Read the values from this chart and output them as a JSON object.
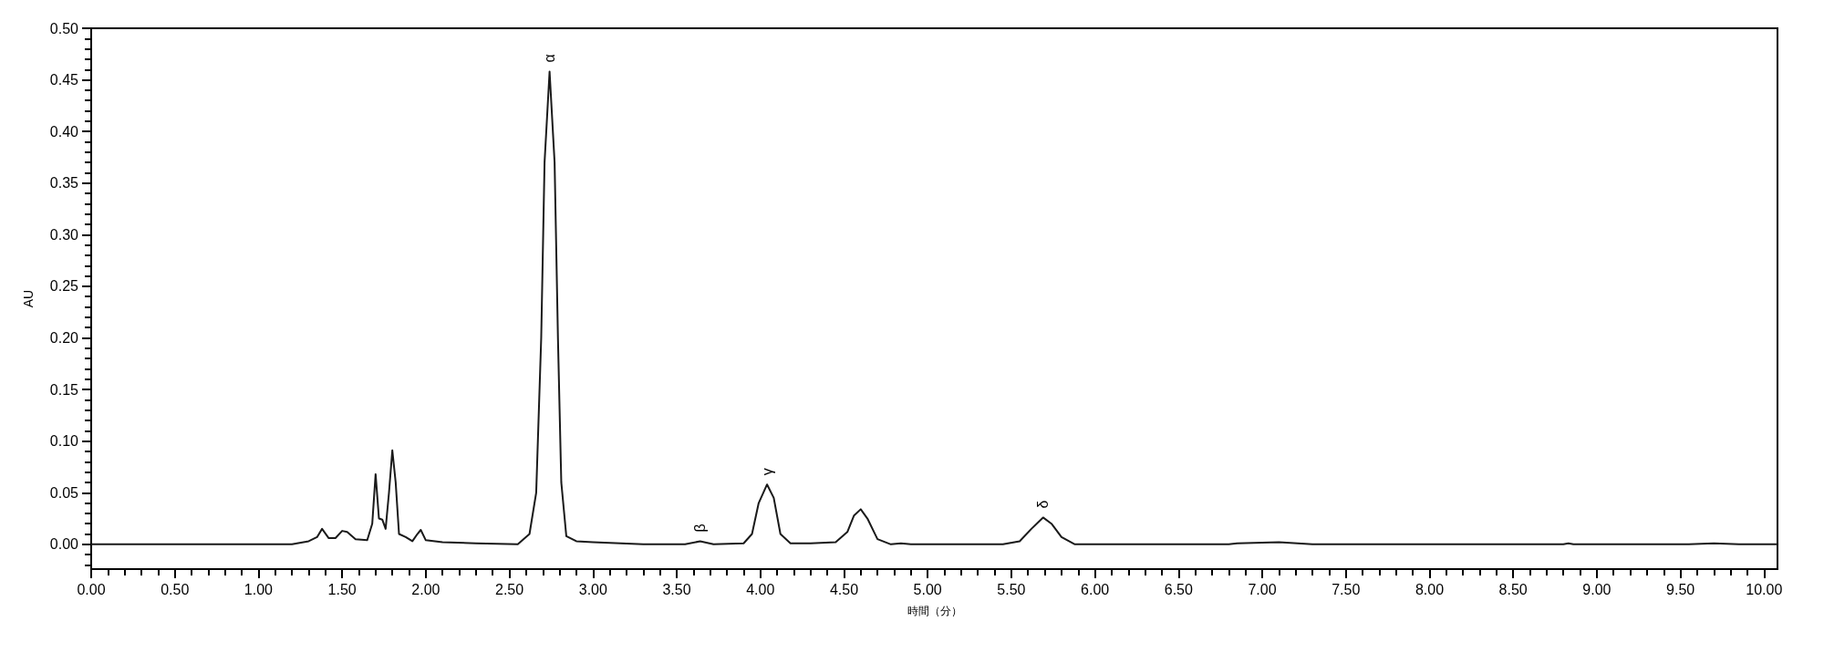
{
  "chart_data": {
    "type": "line",
    "xlabel": "時間（分）",
    "ylabel": "AU",
    "xlim": [
      0,
      10.08
    ],
    "ylim": [
      -0.024,
      0.5
    ],
    "xticks": [
      {
        "value": 0,
        "label": "0.00"
      },
      {
        "value": 0.5,
        "label": "0.50"
      },
      {
        "value": 1,
        "label": "1.00"
      },
      {
        "value": 1.5,
        "label": "1.50"
      },
      {
        "value": 2,
        "label": "2.00"
      },
      {
        "value": 2.5,
        "label": "2.50"
      },
      {
        "value": 3,
        "label": "3.00"
      },
      {
        "value": 3.5,
        "label": "3.50"
      },
      {
        "value": 4,
        "label": "4.00"
      },
      {
        "value": 4.5,
        "label": "4.50"
      },
      {
        "value": 5,
        "label": "5.00"
      },
      {
        "value": 5.5,
        "label": "5.50"
      },
      {
        "value": 6,
        "label": "6.00"
      },
      {
        "value": 6.5,
        "label": "6.50"
      },
      {
        "value": 7,
        "label": "7.00"
      },
      {
        "value": 7.5,
        "label": "7.50"
      },
      {
        "value": 8,
        "label": "8.00"
      },
      {
        "value": 8.5,
        "label": "8.50"
      },
      {
        "value": 9,
        "label": "9.00"
      },
      {
        "value": 9.5,
        "label": "9.50"
      },
      {
        "value": 10,
        "label": "10.00"
      }
    ],
    "yticks": [
      {
        "value": 0,
        "label": "0.00"
      },
      {
        "value": 0.05,
        "label": "0.05"
      },
      {
        "value": 0.1,
        "label": "0.10"
      },
      {
        "value": 0.15,
        "label": "0.15"
      },
      {
        "value": 0.2,
        "label": "0.20"
      },
      {
        "value": 0.25,
        "label": "0.25"
      },
      {
        "value": 0.3,
        "label": "0.30"
      },
      {
        "value": 0.35,
        "label": "0.35"
      },
      {
        "value": 0.4,
        "label": "0.40"
      },
      {
        "value": 0.45,
        "label": "0.45"
      },
      {
        "value": 0.5,
        "label": "0.50"
      }
    ],
    "marker": "none",
    "line_style": "solid",
    "series": [
      {
        "color": "#1a1a1a",
        "x": [
          0,
          1.2,
          1.3,
          1.35,
          1.38,
          1.42,
          1.46,
          1.5,
          1.53,
          1.58,
          1.65,
          1.68,
          1.7,
          1.72,
          1.74,
          1.76,
          1.78,
          1.8,
          1.82,
          1.84,
          1.88,
          1.92,
          1.95,
          1.97,
          2,
          2.1,
          2.3,
          2.55,
          2.62,
          2.66,
          2.69,
          2.71,
          2.74,
          2.77,
          2.79,
          2.81,
          2.84,
          2.9,
          3,
          3.3,
          3.55,
          3.64,
          3.72,
          3.9,
          3.95,
          3.99,
          4.04,
          4.08,
          4.12,
          4.18,
          4.3,
          4.45,
          4.52,
          4.56,
          4.6,
          4.64,
          4.7,
          4.78,
          4.84,
          4.9,
          5.45,
          5.55,
          5.62,
          5.69,
          5.74,
          5.8,
          5.88,
          6.8,
          6.85,
          7.1,
          7.3,
          8.8,
          8.83,
          8.86,
          9.55,
          9.7,
          9.85,
          10.08
        ],
        "values": [
          0,
          0,
          0.003,
          0.007,
          0.015,
          0.006,
          0.006,
          0.013,
          0.012,
          0.005,
          0.004,
          0.02,
          0.068,
          0.025,
          0.024,
          0.015,
          0.05,
          0.091,
          0.06,
          0.01,
          0.007,
          0.003,
          0.01,
          0.014,
          0.004,
          0.002,
          0.001,
          0,
          0.01,
          0.05,
          0.2,
          0.37,
          0.458,
          0.37,
          0.2,
          0.06,
          0.008,
          0.003,
          0.002,
          0,
          0,
          0.003,
          0,
          0.001,
          0.01,
          0.04,
          0.058,
          0.045,
          0.01,
          0.001,
          0.001,
          0.002,
          0.012,
          0.028,
          0.034,
          0.025,
          0.005,
          0,
          0.001,
          0,
          0,
          0.003,
          0.015,
          0.026,
          0.02,
          0.007,
          0,
          0,
          0.001,
          0.002,
          0,
          0,
          0.001,
          0,
          0,
          0.001,
          0,
          0
        ]
      }
    ],
    "annotations": [
      {
        "text": "α",
        "x": 2.74,
        "y": 0.458
      },
      {
        "text": "β",
        "x": 3.64,
        "y": 0.003
      },
      {
        "text": "γ",
        "x": 4.04,
        "y": 0.058
      },
      {
        "text": "δ",
        "x": 5.69,
        "y": 0.026
      }
    ]
  }
}
